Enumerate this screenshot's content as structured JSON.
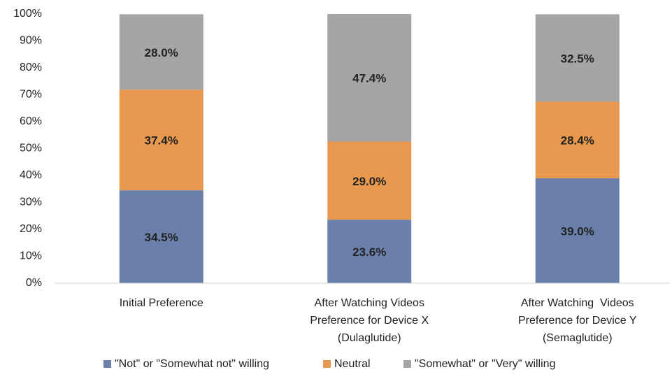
{
  "chart_data": {
    "type": "stacked_bar",
    "categories": [
      [
        "Initial Preference"
      ],
      [
        "After Watching Videos",
        "Preference for Device X",
        "(Dulaglutide)"
      ],
      [
        "After Watching  Videos",
        "Preference for Device Y",
        "(Semaglutide)"
      ]
    ],
    "series": [
      {
        "name": "\"Not\" or \"Somewhat not\" willing",
        "color": "#6a80ab",
        "values": [
          34.5,
          23.6,
          39.0
        ],
        "value_labels": [
          "34.5%",
          "23.6%",
          "39.0%"
        ]
      },
      {
        "name": "Neutral",
        "color": "#e9994f",
        "values": [
          37.4,
          29.0,
          28.4
        ],
        "value_labels": [
          "37.4%",
          "29.0%",
          "28.4%"
        ]
      },
      {
        "name": "\"Somewhat\" or \"Very\" willing",
        "color": "#a5a5a5",
        "values": [
          28.0,
          47.4,
          32.5
        ],
        "value_labels": [
          "28.0%",
          "47.4%",
          "32.5%"
        ]
      }
    ],
    "ylim": [
      0,
      100
    ],
    "yticks": [
      {
        "value": 0,
        "label": "0%"
      },
      {
        "value": 10,
        "label": "10%"
      },
      {
        "value": 20,
        "label": "20%"
      },
      {
        "value": 30,
        "label": "30%"
      },
      {
        "value": 40,
        "label": "40%"
      },
      {
        "value": 50,
        "label": "50%"
      },
      {
        "value": 60,
        "label": "60%"
      },
      {
        "value": 70,
        "label": "70%"
      },
      {
        "value": 80,
        "label": "80%"
      },
      {
        "value": 90,
        "label": "90%"
      },
      {
        "value": 100,
        "label": "100%"
      }
    ],
    "legend": "bottom"
  }
}
